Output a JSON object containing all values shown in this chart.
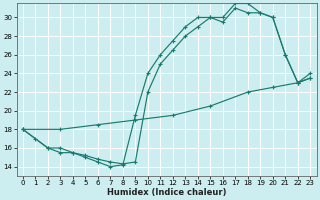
{
  "xlabel": "Humidex (Indice chaleur)",
  "bg_color": "#cceef0",
  "grid_color": "#ffffff",
  "line_color": "#1a7a6e",
  "xlim": [
    -0.5,
    23.5
  ],
  "ylim": [
    13.0,
    31.5
  ],
  "xticks": [
    0,
    1,
    2,
    3,
    4,
    5,
    6,
    7,
    8,
    9,
    10,
    11,
    12,
    13,
    14,
    15,
    16,
    17,
    18,
    19,
    20,
    21,
    22,
    23
  ],
  "yticks": [
    14,
    16,
    18,
    20,
    22,
    24,
    26,
    28,
    30
  ],
  "line1_x": [
    0,
    1,
    2,
    3,
    4,
    5,
    6,
    7,
    8,
    9,
    10,
    11,
    12,
    13,
    14,
    15,
    16,
    17,
    18,
    19,
    20,
    21,
    22,
    23
  ],
  "line1_y": [
    18,
    17,
    16,
    16,
    15.5,
    15,
    14.5,
    14,
    14.2,
    19.5,
    24,
    26,
    27.5,
    29,
    30,
    30,
    29.5,
    31,
    30.5,
    30.5,
    30,
    26,
    23,
    23.5
  ],
  "line2_x": [
    0,
    2,
    3,
    4,
    5,
    6,
    7,
    8,
    9,
    10,
    11,
    12,
    13,
    14,
    15,
    16,
    17,
    18,
    19,
    20,
    21,
    22,
    23
  ],
  "line2_y": [
    18,
    16,
    15.5,
    15.5,
    15.2,
    14.8,
    14.5,
    14.3,
    14.5,
    22,
    25,
    26.5,
    28,
    29,
    30,
    30,
    31.5,
    31.5,
    30.5,
    30,
    26,
    23,
    24
  ],
  "line3_x": [
    0,
    3,
    6,
    9,
    12,
    15,
    18,
    20,
    22,
    23
  ],
  "line3_y": [
    18,
    18,
    18.5,
    19,
    19.5,
    20.5,
    22,
    22.5,
    23,
    23.5
  ]
}
